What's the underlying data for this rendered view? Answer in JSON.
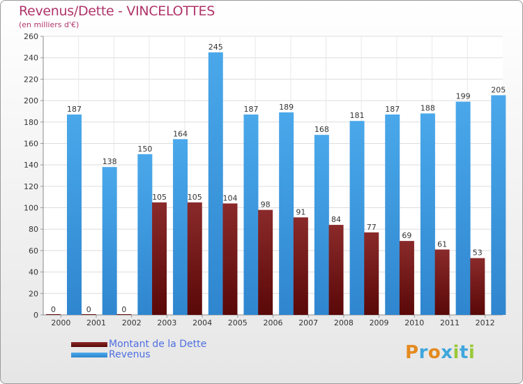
{
  "chart_data": {
    "type": "bar",
    "title": "Revenus/Dette - VINCELOTTES",
    "subtitle": "(en milliers d'€)",
    "categories": [
      "2000",
      "2001",
      "2002",
      "2003",
      "2004",
      "2005",
      "2006",
      "2007",
      "2008",
      "2009",
      "2010",
      "2011",
      "2012"
    ],
    "series": [
      {
        "name": "Montant de la Dette",
        "color": "#6b0f0f",
        "values": [
          0,
          0,
          0,
          105,
          105,
          104,
          98,
          91,
          84,
          77,
          69,
          61,
          53
        ]
      },
      {
        "name": "Revenus",
        "color": "#3d9be0",
        "values": [
          187,
          138,
          150,
          164,
          245,
          187,
          189,
          168,
          181,
          187,
          188,
          199,
          205
        ]
      }
    ],
    "ylim": [
      0,
      260
    ],
    "yticks": [
      0,
      20,
      40,
      60,
      80,
      100,
      120,
      140,
      160,
      180,
      200,
      220,
      240,
      260
    ],
    "grid": true,
    "legend": "bottom-left"
  },
  "logo": {
    "text": "Proxiti",
    "letters": [
      "P",
      "r",
      "o",
      "x",
      "i",
      "t",
      "i"
    ],
    "colors": [
      "#e58a1f",
      "#3fa7dc",
      "#e58a1f",
      "#3fa7dc",
      "#9bc83a",
      "#3fa7dc",
      "#9bc83a"
    ]
  }
}
